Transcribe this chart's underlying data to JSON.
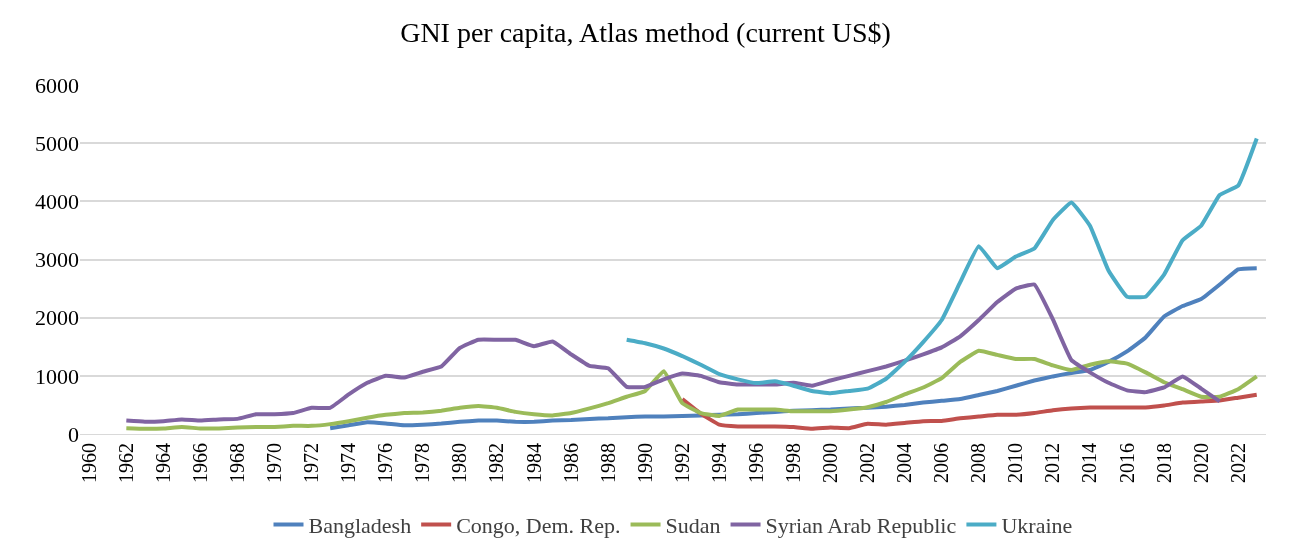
{
  "chart_data": {
    "type": "line",
    "title": "GNI per capita, Atlas method (current US$)",
    "categories": [
      "1960",
      null,
      "1962",
      null,
      "1964",
      null,
      "1966",
      null,
      "1968",
      null,
      "1970",
      null,
      "1972",
      null,
      "1974",
      null,
      "1976",
      null,
      "1978",
      null,
      "1980",
      null,
      "1982",
      null,
      "1984",
      null,
      "1986",
      null,
      "1988",
      null,
      "1990",
      null,
      "1992",
      null,
      "1994",
      null,
      "1996",
      null,
      "1998",
      null,
      "2000",
      null,
      "2002",
      null,
      "2004",
      null,
      "2006",
      null,
      "2008",
      null,
      "2010",
      null,
      "2012",
      null,
      "2014",
      null,
      "2016",
      null,
      "2018",
      null,
      "2020",
      null,
      "2022",
      null
    ],
    "ylim": [
      0,
      6000
    ],
    "yticks": [
      0,
      1000,
      2000,
      3000,
      4000,
      5000,
      6000
    ],
    "grid": "y",
    "legend": "bottom",
    "marker": "none",
    "line_style": "solid",
    "series": [
      {
        "name": "Bangladesh",
        "color": "#4f81bd",
        "values": [
          null,
          null,
          null,
          null,
          null,
          null,
          null,
          null,
          null,
          null,
          null,
          null,
          null,
          100,
          150,
          200,
          180,
          150,
          160,
          180,
          210,
          230,
          230,
          210,
          210,
          230,
          240,
          260,
          270,
          290,
          300,
          300,
          310,
          320,
          330,
          340,
          360,
          380,
          400,
          410,
          420,
          440,
          450,
          470,
          500,
          540,
          570,
          600,
          670,
          740,
          830,
          920,
          990,
          1050,
          1100,
          1240,
          1420,
          1660,
          2020,
          2200,
          2320,
          2570,
          2830,
          2850
        ]
      },
      {
        "name": "Congo, Dem. Rep.",
        "color": "#c0504d",
        "values": [
          null,
          null,
          null,
          null,
          null,
          null,
          null,
          null,
          null,
          null,
          null,
          null,
          null,
          null,
          null,
          null,
          null,
          null,
          null,
          null,
          null,
          null,
          null,
          null,
          null,
          null,
          null,
          null,
          null,
          null,
          null,
          null,
          600,
          350,
          160,
          130,
          130,
          130,
          120,
          90,
          110,
          100,
          175,
          160,
          190,
          220,
          225,
          270,
          300,
          330,
          330,
          360,
          410,
          440,
          455,
          455,
          455,
          455,
          490,
          540,
          560,
          575,
          625,
          675
        ]
      },
      {
        "name": "Sudan",
        "color": "#9bbb59",
        "values": [
          null,
          null,
          100,
          90,
          95,
          120,
          95,
          95,
          110,
          120,
          120,
          140,
          140,
          170,
          220,
          280,
          330,
          360,
          370,
          400,
          450,
          480,
          450,
          380,
          340,
          320,
          360,
          440,
          530,
          640,
          740,
          1080,
          530,
          360,
          310,
          420,
          420,
          420,
          390,
          390,
          390,
          420,
          460,
          550,
          680,
          800,
          960,
          1240,
          1430,
          1360,
          1290,
          1290,
          1180,
          1100,
          1190,
          1250,
          1210,
          1060,
          890,
          770,
          640,
          640,
          770,
          990
        ]
      },
      {
        "name": "Syrian Arab Republic",
        "color": "#8064a2",
        "values": [
          null,
          null,
          230,
          210,
          220,
          250,
          230,
          250,
          260,
          340,
          340,
          360,
          450,
          450,
          680,
          880,
          1000,
          970,
          1070,
          1160,
          1480,
          1620,
          1620,
          1620,
          1510,
          1590,
          1370,
          1170,
          1130,
          810,
          810,
          940,
          1040,
          1000,
          890,
          850,
          850,
          850,
          880,
          830,
          920,
          1000,
          1080,
          1160,
          1260,
          1370,
          1490,
          1680,
          1960,
          2270,
          2500,
          2570,
          1970,
          1270,
          1060,
          880,
          750,
          720,
          800,
          990,
          780,
          560,
          null,
          null
        ]
      },
      {
        "name": "Ukraine",
        "color": "#4bacc6",
        "values": [
          null,
          null,
          null,
          null,
          null,
          null,
          null,
          null,
          null,
          null,
          null,
          null,
          null,
          null,
          null,
          null,
          null,
          null,
          null,
          null,
          null,
          null,
          null,
          null,
          null,
          null,
          null,
          null,
          null,
          1620,
          1560,
          1470,
          1340,
          1190,
          1030,
          940,
          875,
          905,
          830,
          740,
          700,
          740,
          780,
          950,
          1240,
          1580,
          1960,
          2610,
          3230,
          2850,
          3050,
          3190,
          3680,
          3980,
          3580,
          2810,
          2360,
          2360,
          2740,
          3330,
          3580,
          4110,
          4270,
          5080
        ]
      }
    ]
  }
}
